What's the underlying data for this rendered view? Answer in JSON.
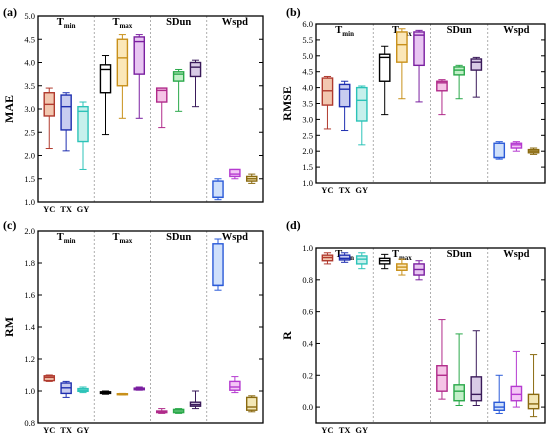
{
  "figure": {
    "title": ""
  },
  "chart_data": [
    {
      "type": "box",
      "panel_label": "(a)",
      "ylabel": "MAE",
      "ylim": [
        1.0,
        5.0
      ],
      "yticks": [
        1.0,
        1.5,
        2.0,
        2.5,
        3.0,
        3.5,
        4.0,
        4.5,
        5.0
      ],
      "ytick_labels": [
        "1.0",
        "1.5",
        "2.0",
        "2.5",
        "3.0",
        "3.5",
        "4.0",
        "4.5",
        "5.0"
      ],
      "groups": [
        {
          "label_main": "T",
          "label_sub": "min"
        },
        {
          "label_main": "T",
          "label_sub": "max"
        },
        {
          "label_main": "SDun",
          "label_sub": ""
        },
        {
          "label_main": "Wspd",
          "label_sub": ""
        }
      ],
      "xticks_first_group": [
        "YC",
        "TX",
        "GY"
      ],
      "boxes": [
        {
          "group": 0,
          "model": "YC",
          "min": 2.15,
          "q1": 2.85,
          "median": 3.1,
          "q3": 3.35,
          "max": 3.45
        },
        {
          "group": 0,
          "model": "TX",
          "min": 2.1,
          "q1": 2.55,
          "median": 3.05,
          "q3": 3.3,
          "max": 3.35
        },
        {
          "group": 0,
          "model": "GY",
          "min": 1.7,
          "q1": 2.3,
          "median": 2.95,
          "q3": 3.05,
          "max": 3.15
        },
        {
          "group": 1,
          "model": "YC",
          "min": 2.45,
          "q1": 3.35,
          "median": 3.85,
          "q3": 3.95,
          "max": 4.15
        },
        {
          "group": 1,
          "model": "TX",
          "min": 2.8,
          "q1": 3.5,
          "median": 4.1,
          "q3": 4.5,
          "max": 4.6
        },
        {
          "group": 1,
          "model": "GY",
          "min": 2.8,
          "q1": 3.75,
          "median": 4.45,
          "q3": 4.55,
          "max": 4.6
        },
        {
          "group": 2,
          "model": "YC",
          "min": 2.6,
          "q1": 3.15,
          "median": 3.4,
          "q3": 3.45,
          "max": 3.45
        },
        {
          "group": 2,
          "model": "TX",
          "min": 2.95,
          "q1": 3.6,
          "median": 3.75,
          "q3": 3.8,
          "max": 3.85
        },
        {
          "group": 2,
          "model": "GY",
          "min": 3.05,
          "q1": 3.7,
          "median": 3.9,
          "q3": 4.0,
          "max": 4.05
        },
        {
          "group": 3,
          "model": "YC",
          "min": 1.05,
          "q1": 1.1,
          "median": 1.1,
          "q3": 1.45,
          "max": 1.5
        },
        {
          "group": 3,
          "model": "TX",
          "min": 1.5,
          "q1": 1.55,
          "median": 1.6,
          "q3": 1.7,
          "max": 1.7
        },
        {
          "group": 3,
          "model": "GY",
          "min": 1.4,
          "q1": 1.45,
          "median": 1.5,
          "q3": 1.55,
          "max": 1.6
        }
      ]
    },
    {
      "type": "box",
      "panel_label": "(b)",
      "ylabel": "RMSE",
      "ylim": [
        1.0,
        6.0
      ],
      "yticks": [
        1.0,
        1.5,
        2.0,
        2.5,
        3.0,
        3.5,
        4.0,
        4.5,
        5.0,
        5.5,
        6.0
      ],
      "ytick_labels": [
        "1.0",
        "1.5",
        "2.0",
        "2.5",
        "3.0",
        "3.5",
        "4.0",
        "4.5",
        "5.0",
        "5.5",
        "6.0"
      ],
      "groups": [
        {
          "label_main": "T",
          "label_sub": "min"
        },
        {
          "label_main": "T",
          "label_sub": "max"
        },
        {
          "label_main": "SDun",
          "label_sub": ""
        },
        {
          "label_main": "Wspd",
          "label_sub": ""
        }
      ],
      "xticks_first_group": [
        "YC",
        "TX",
        "GY"
      ],
      "boxes": [
        {
          "group": 0,
          "model": "YC",
          "min": 2.7,
          "q1": 3.45,
          "median": 3.9,
          "q3": 4.3,
          "max": 4.35
        },
        {
          "group": 0,
          "model": "TX",
          "min": 2.65,
          "q1": 3.4,
          "median": 3.95,
          "q3": 4.1,
          "max": 4.2
        },
        {
          "group": 0,
          "model": "GY",
          "min": 2.2,
          "q1": 2.95,
          "median": 3.6,
          "q3": 4.0,
          "max": 4.05
        },
        {
          "group": 1,
          "model": "YC",
          "min": 3.15,
          "q1": 4.2,
          "median": 4.95,
          "q3": 5.05,
          "max": 5.3
        },
        {
          "group": 1,
          "model": "TX",
          "min": 3.65,
          "q1": 4.8,
          "median": 5.35,
          "q3": 5.75,
          "max": 5.85
        },
        {
          "group": 1,
          "model": "GY",
          "min": 3.55,
          "q1": 4.7,
          "median": 5.65,
          "q3": 5.75,
          "max": 5.8
        },
        {
          "group": 2,
          "model": "YC",
          "min": 3.15,
          "q1": 3.9,
          "median": 4.15,
          "q3": 4.2,
          "max": 4.25
        },
        {
          "group": 2,
          "model": "TX",
          "min": 3.65,
          "q1": 4.4,
          "median": 4.55,
          "q3": 4.65,
          "max": 4.7
        },
        {
          "group": 2,
          "model": "GY",
          "min": 3.7,
          "q1": 4.55,
          "median": 4.8,
          "q3": 4.9,
          "max": 4.95
        },
        {
          "group": 3,
          "model": "YC",
          "min": 1.75,
          "q1": 1.8,
          "median": 1.8,
          "q3": 2.25,
          "max": 2.3
        },
        {
          "group": 3,
          "model": "TX",
          "min": 2.0,
          "q1": 2.1,
          "median": 2.2,
          "q3": 2.25,
          "max": 2.3
        },
        {
          "group": 3,
          "model": "GY",
          "min": 1.9,
          "q1": 1.95,
          "median": 2.0,
          "q3": 2.05,
          "max": 2.1
        }
      ]
    },
    {
      "type": "box",
      "panel_label": "(c)",
      "ylabel": "RM",
      "ylim": [
        0.8,
        2.0
      ],
      "yticks": [
        0.8,
        1.0,
        1.2,
        1.4,
        1.6,
        1.8,
        2.0
      ],
      "ytick_labels": [
        "0.8",
        "1.0",
        "1.2",
        "1.4",
        "1.6",
        "1.8",
        "2.0"
      ],
      "groups": [
        {
          "label_main": "T",
          "label_sub": "min"
        },
        {
          "label_main": "T",
          "label_sub": "max"
        },
        {
          "label_main": "SDun",
          "label_sub": ""
        },
        {
          "label_main": "Wspd",
          "label_sub": ""
        }
      ],
      "xticks_first_group": [
        "YC",
        "TX",
        "GY"
      ],
      "boxes": [
        {
          "group": 0,
          "model": "YC",
          "min": 1.06,
          "q1": 1.065,
          "median": 1.085,
          "q3": 1.095,
          "max": 1.1
        },
        {
          "group": 0,
          "model": "TX",
          "min": 0.96,
          "q1": 0.985,
          "median": 1.02,
          "q3": 1.05,
          "max": 1.06
        },
        {
          "group": 0,
          "model": "GY",
          "min": 0.99,
          "q1": 0.998,
          "median": 1.005,
          "q3": 1.015,
          "max": 1.025
        },
        {
          "group": 1,
          "model": "YC",
          "min": 0.98,
          "q1": 0.985,
          "median": 0.99,
          "q3": 0.995,
          "max": 1.0
        },
        {
          "group": 1,
          "model": "TX",
          "min": 0.975,
          "q1": 0.978,
          "median": 0.98,
          "q3": 0.983,
          "max": 0.985
        },
        {
          "group": 1,
          "model": "GY",
          "min": 1.005,
          "q1": 1.008,
          "median": 1.012,
          "q3": 1.018,
          "max": 1.025
        },
        {
          "group": 2,
          "model": "YC",
          "min": 0.86,
          "q1": 0.865,
          "median": 0.87,
          "q3": 0.875,
          "max": 0.89
        },
        {
          "group": 2,
          "model": "TX",
          "min": 0.86,
          "q1": 0.865,
          "median": 0.875,
          "q3": 0.885,
          "max": 0.89
        },
        {
          "group": 2,
          "model": "GY",
          "min": 0.89,
          "q1": 0.905,
          "median": 0.915,
          "q3": 0.93,
          "max": 1.0
        },
        {
          "group": 3,
          "model": "YC",
          "min": 1.63,
          "q1": 1.66,
          "median": 1.66,
          "q3": 1.92,
          "max": 1.95
        },
        {
          "group": 3,
          "model": "TX",
          "min": 0.99,
          "q1": 1.005,
          "median": 1.025,
          "q3": 1.06,
          "max": 1.09
        },
        {
          "group": 3,
          "model": "GY",
          "min": 0.87,
          "q1": 0.88,
          "median": 0.9,
          "q3": 0.96,
          "max": 0.97
        }
      ]
    },
    {
      "type": "box",
      "panel_label": "(d)",
      "ylabel": "R",
      "ylim": [
        -0.1,
        1.0
      ],
      "yticks": [
        0.0,
        0.2,
        0.4,
        0.6,
        0.8,
        1.0
      ],
      "ytick_labels": [
        "0.0",
        "0.2",
        "0.4",
        "0.6",
        "0.8",
        "1.0"
      ],
      "groups": [
        {
          "label_main": "T",
          "label_sub": "min"
        },
        {
          "label_main": "T",
          "label_sub": "max"
        },
        {
          "label_main": "SDun",
          "label_sub": ""
        },
        {
          "label_main": "Wspd",
          "label_sub": ""
        }
      ],
      "xticks_first_group": [
        "YC",
        "TX",
        "GY"
      ],
      "boxes": [
        {
          "group": 0,
          "model": "YC",
          "min": 0.9,
          "q1": 0.92,
          "median": 0.94,
          "q3": 0.955,
          "max": 0.97
        },
        {
          "group": 0,
          "model": "TX",
          "min": 0.91,
          "q1": 0.925,
          "median": 0.935,
          "q3": 0.955,
          "max": 0.97
        },
        {
          "group": 0,
          "model": "GY",
          "min": 0.87,
          "q1": 0.9,
          "median": 0.93,
          "q3": 0.95,
          "max": 0.97
        },
        {
          "group": 1,
          "model": "YC",
          "min": 0.87,
          "q1": 0.9,
          "median": 0.92,
          "q3": 0.935,
          "max": 0.96
        },
        {
          "group": 1,
          "model": "TX",
          "min": 0.83,
          "q1": 0.86,
          "median": 0.88,
          "q3": 0.9,
          "max": 0.93
        },
        {
          "group": 1,
          "model": "GY",
          "min": 0.8,
          "q1": 0.83,
          "median": 0.865,
          "q3": 0.9,
          "max": 0.92
        },
        {
          "group": 2,
          "model": "YC",
          "min": 0.05,
          "q1": 0.1,
          "median": 0.2,
          "q3": 0.26,
          "max": 0.55
        },
        {
          "group": 2,
          "model": "TX",
          "min": 0.01,
          "q1": 0.04,
          "median": 0.1,
          "q3": 0.14,
          "max": 0.46
        },
        {
          "group": 2,
          "model": "GY",
          "min": 0.01,
          "q1": 0.04,
          "median": 0.08,
          "q3": 0.19,
          "max": 0.48
        },
        {
          "group": 3,
          "model": "YC",
          "min": -0.04,
          "q1": -0.02,
          "median": 0.0,
          "q3": 0.03,
          "max": 0.2
        },
        {
          "group": 3,
          "model": "TX",
          "min": 0.0,
          "q1": 0.04,
          "median": 0.08,
          "q3": 0.13,
          "max": 0.35
        },
        {
          "group": 3,
          "model": "GY",
          "min": -0.06,
          "q1": -0.01,
          "median": 0.02,
          "q3": 0.08,
          "max": 0.33
        }
      ]
    }
  ],
  "model_colors": {
    "0": [
      "#b03a2e",
      "#1f2fb0",
      "#2cc3b8"
    ],
    "1": [
      "#000000",
      "#c8901a",
      "#7a1fa0"
    ],
    "2": [
      "#b02a8a",
      "#2aa84a",
      "#3a1a5a"
    ],
    "3": [
      "#2a5ad8",
      "#b53ad0",
      "#8a6a10"
    ]
  },
  "fill_colors": {
    "0": [
      "#f2c7b0",
      "#c8ccf0",
      "#c6f0ec"
    ],
    "1": [
      "#ffffff",
      "#fbe7b8",
      "#e8c6f2"
    ],
    "2": [
      "#f5c4e6",
      "#c2efc8",
      "#d9cbe6"
    ],
    "3": [
      "#cfe0fb",
      "#f4c6f6",
      "#f3e7b6"
    ]
  }
}
